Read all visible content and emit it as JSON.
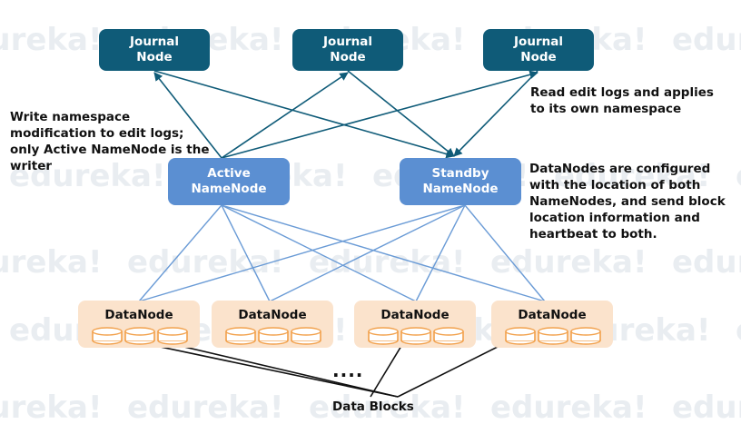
{
  "journal_nodes": [
    {
      "line1": "Journal",
      "line2": "Node"
    },
    {
      "line1": "Journal",
      "line2": "Node"
    },
    {
      "line1": "Journal",
      "line2": "Node"
    }
  ],
  "active_namenode": {
    "line1": "Active",
    "line2": "NameNode"
  },
  "standby_namenode": {
    "line1": "Standby",
    "line2": "NameNode"
  },
  "datanodes": [
    {
      "label": "DataNode"
    },
    {
      "label": "DataNode"
    },
    {
      "label": "DataNode"
    },
    {
      "label": "DataNode"
    }
  ],
  "notes": {
    "left": [
      "Write namespace",
      "modification to edit logs;",
      "only Active NameNode is the",
      "writer"
    ],
    "top_right": [
      "Read edit logs and applies",
      "to its own namespace"
    ],
    "right": [
      "DataNodes are configured",
      "with the location of both",
      "NameNodes, and send block",
      "location information and",
      "heartbeat to both."
    ]
  },
  "ellipsis": "....",
  "data_blocks_label": "Data Blocks",
  "watermark": "edureka!",
  "colors": {
    "journal_fill": "#0f5b78",
    "namenode_fill": "#5b8fd2",
    "datanode_fill": "#fbe3cc",
    "journal_links": "#0f5b78",
    "datanode_links": "#6a9bd6",
    "disk_stroke": "#f2a24e"
  }
}
